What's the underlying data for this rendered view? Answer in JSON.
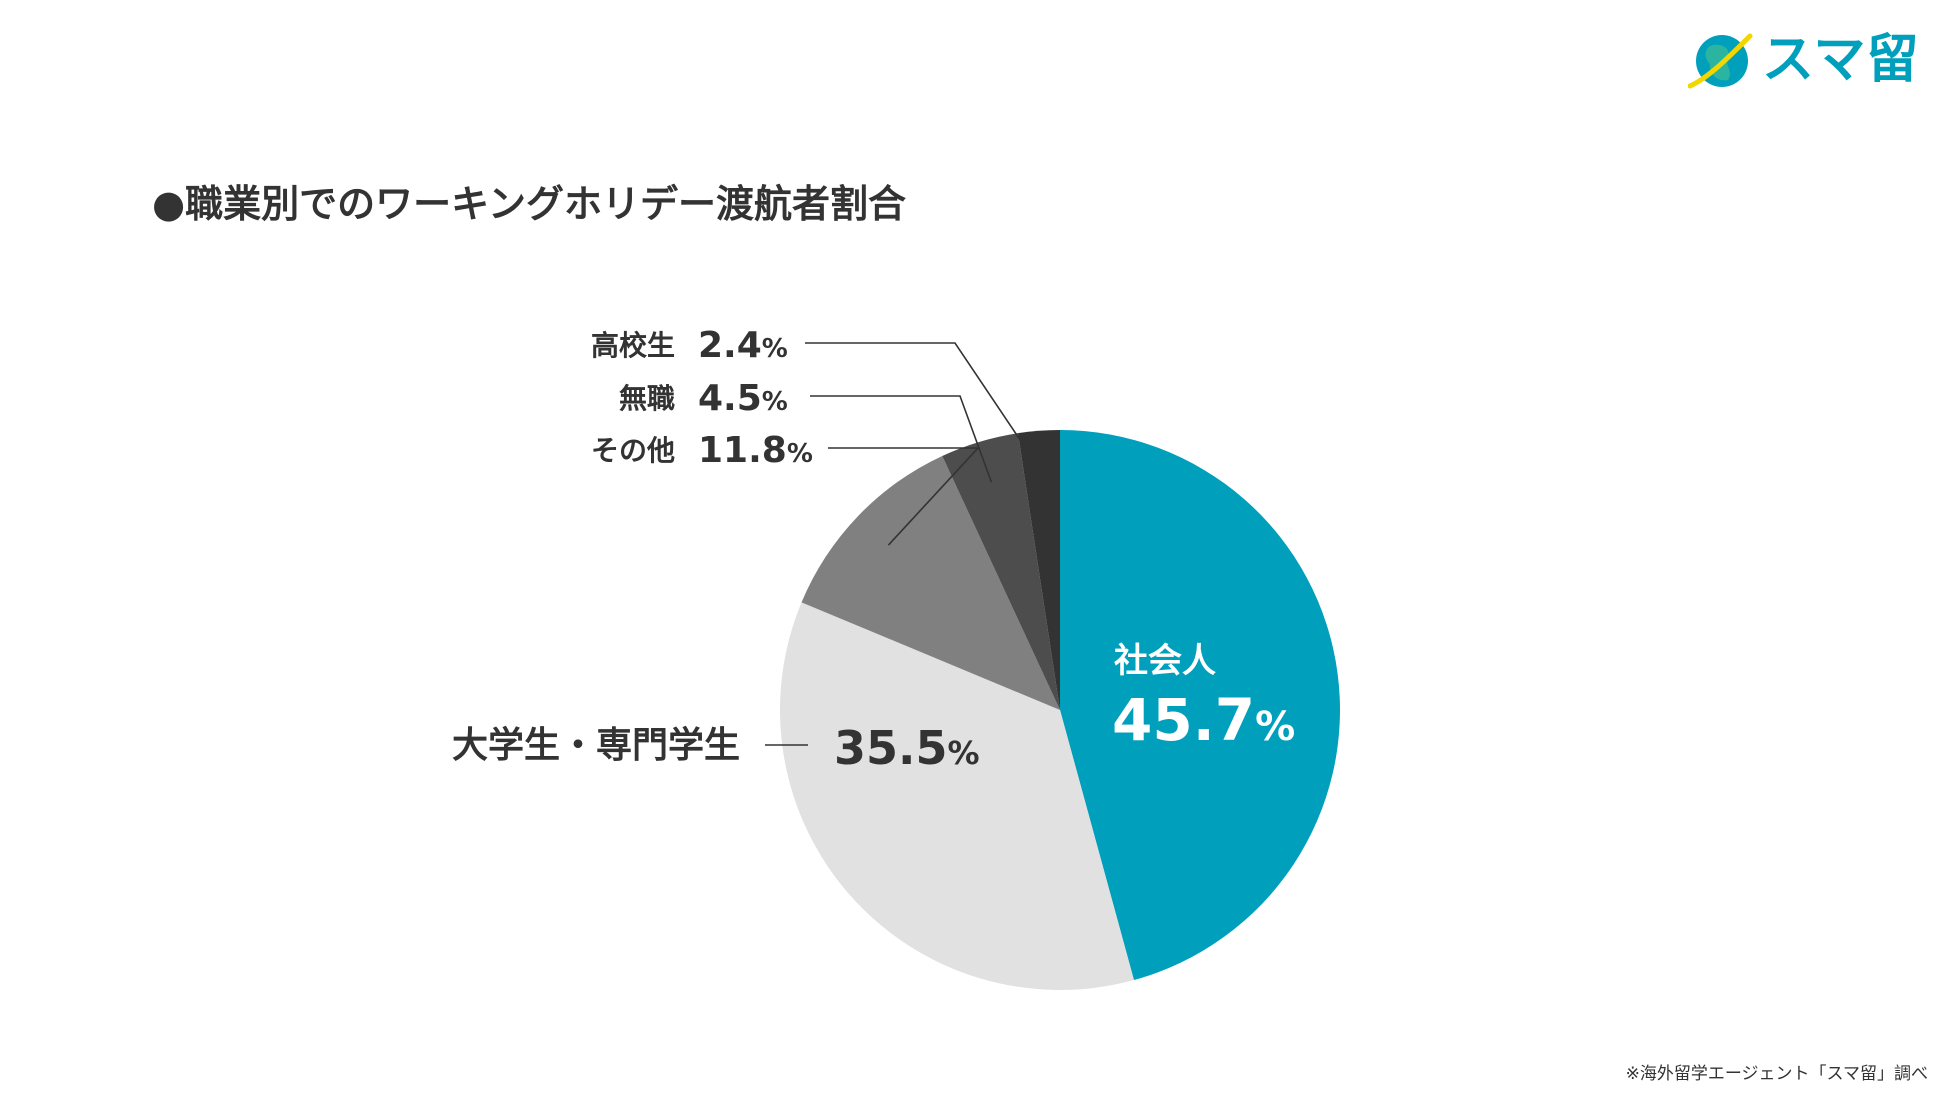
{
  "title": "●職業別でのワーキングホリデー渡航者割合",
  "logo": {
    "text": "スマ留",
    "icon": "globe-icon"
  },
  "source_note": "※海外留学エージェント「スマ留」調べ",
  "colors": {
    "text": "#333333",
    "brand": "#00a0bd",
    "logo_green": "#2bb5a0",
    "logo_yellow": "#f2d600",
    "leader_line": "#333333"
  },
  "chart_data": {
    "type": "pie",
    "unit": "%",
    "slices": [
      {
        "label": "社会人",
        "value": 45.7,
        "color": "#00a0bd"
      },
      {
        "label": "大学生・専門学生",
        "value": 35.5,
        "color": "#e1e1e1"
      },
      {
        "label": "その他",
        "value": 11.8,
        "color": "#808080"
      },
      {
        "label": "無職",
        "value": 4.5,
        "color": "#4d4d4d"
      },
      {
        "label": "高校生",
        "value": 2.4,
        "color": "#333333"
      }
    ]
  }
}
